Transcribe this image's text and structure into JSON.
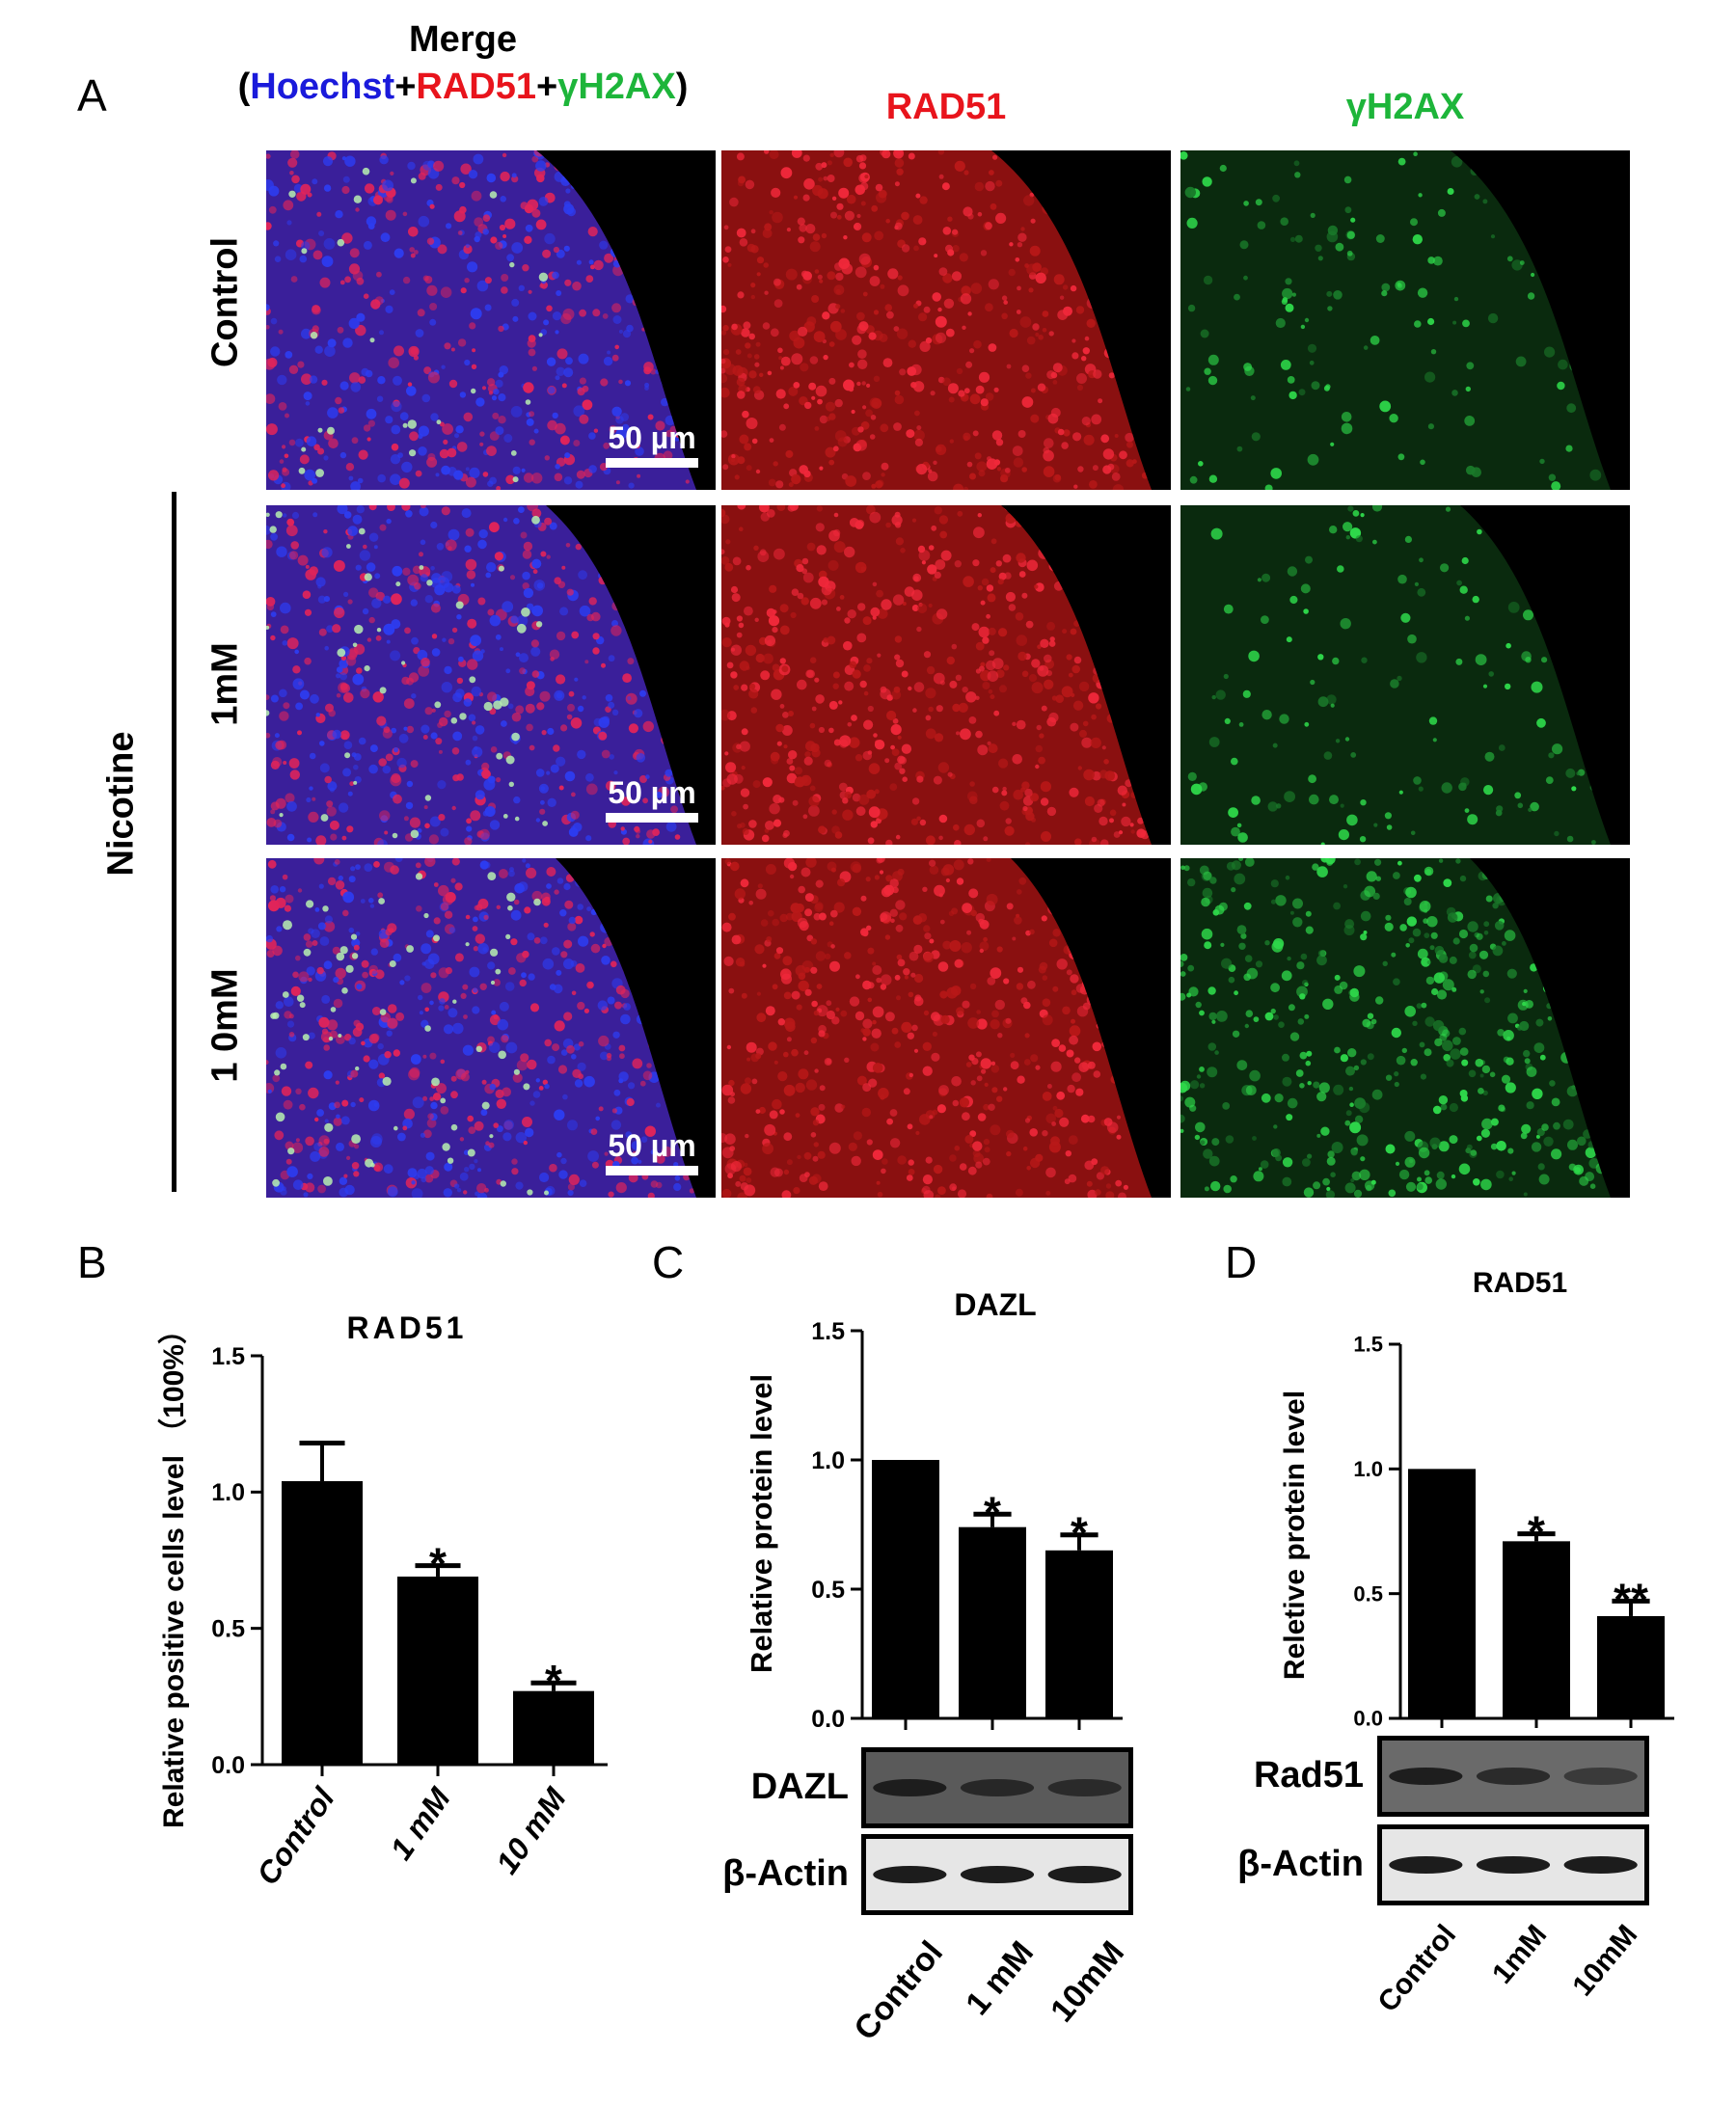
{
  "panel_a": {
    "label": "A",
    "merge_title": "Merge",
    "merge_subtitle": {
      "open": "(",
      "hoechst": "Hoechst",
      "plus1": "+",
      "rad51": "RAD51",
      "plus2": "+",
      "gh2ax": "γH2AX",
      "close": ")"
    },
    "col_rad51": "RAD51",
    "col_gh2ax": "γH2AX",
    "rows": [
      "Control",
      "1mM",
      "1 0mM"
    ],
    "group_label": "Nicotine",
    "scale_bar": "50 µm",
    "colors": {
      "hoechst": "#1a1adb",
      "rad51": "#e8141c",
      "gh2ax": "#1db53a"
    }
  },
  "chart_data": [
    {
      "panel": "B",
      "type": "bar",
      "title": "RAD51",
      "ylabel": "Relative positive cells level （100%）",
      "categories": [
        "Control",
        "1 mM",
        "10 mM"
      ],
      "values": [
        1.04,
        0.69,
        0.27
      ],
      "errors": [
        0.14,
        0.04,
        0.03
      ],
      "significance": [
        "",
        "*",
        "*"
      ],
      "ylim": [
        0,
        1.5
      ],
      "yticks": [
        "0.0",
        "0.5",
        "1.0",
        "1.5"
      ]
    },
    {
      "panel": "C",
      "type": "bar",
      "title": "DAZL",
      "ylabel": "Relative protein level",
      "categories": [
        "Control",
        "1 mM",
        "10mM"
      ],
      "values": [
        1.0,
        0.74,
        0.65
      ],
      "errors": [
        0.0,
        0.05,
        0.06
      ],
      "significance": [
        "",
        "*",
        "*"
      ],
      "ylim": [
        0,
        1.5
      ],
      "yticks": [
        "0.0",
        "0.5",
        "1.0",
        "1.5"
      ],
      "blots": [
        "DAZL",
        "β-Actin"
      ]
    },
    {
      "panel": "D",
      "type": "bar",
      "title": "RAD51",
      "ylabel": "Reletive protein level",
      "categories": [
        "Control",
        "1mM",
        "10mM"
      ],
      "values": [
        1.0,
        0.71,
        0.41
      ],
      "errors": [
        0.0,
        0.03,
        0.06
      ],
      "significance": [
        "",
        "*",
        "**"
      ],
      "ylim": [
        0,
        1.5
      ],
      "yticks": [
        "0.0",
        "0.5",
        "1.0",
        "1.5"
      ],
      "blots": [
        "Rad51",
        "β-Actin"
      ]
    }
  ]
}
